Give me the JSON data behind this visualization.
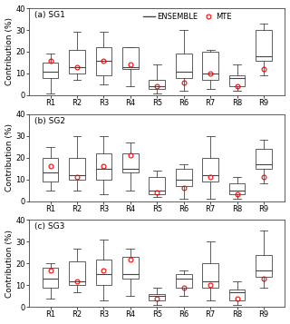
{
  "panels": [
    {
      "label": "(a) SG1",
      "boxes": [
        {
          "whislo": 1,
          "q1": 8,
          "med": 11,
          "q3": 15,
          "whishi": 19,
          "mte": 16
        },
        {
          "whislo": 7,
          "q1": 10,
          "med": 13,
          "q3": 21,
          "whishi": 29,
          "mte": 13
        },
        {
          "whislo": 5,
          "q1": 9,
          "med": 16,
          "q3": 22,
          "whishi": 29,
          "mte": 16
        },
        {
          "whislo": 4,
          "q1": 12,
          "med": 13,
          "q3": 22,
          "whishi": 22,
          "mte": 14
        },
        {
          "whislo": 1,
          "q1": 3,
          "med": 4,
          "q3": 7,
          "whishi": 14,
          "mte": 4
        },
        {
          "whislo": 2,
          "q1": 8,
          "med": 11,
          "q3": 19,
          "whishi": 30,
          "mte": 6
        },
        {
          "whislo": 3,
          "q1": 7,
          "med": 10,
          "q3": 20,
          "whishi": 21,
          "mte": 10
        },
        {
          "whislo": 2,
          "q1": 4,
          "med": 8,
          "q3": 9,
          "whishi": 14,
          "mte": 4
        },
        {
          "whislo": 9,
          "q1": 16,
          "med": 18,
          "q3": 30,
          "whishi": 33,
          "mte": 12
        }
      ]
    },
    {
      "label": "(b) SG2",
      "boxes": [
        {
          "whislo": 5,
          "q1": 9,
          "med": 13,
          "q3": 20,
          "whishi": 25,
          "mte": 16
        },
        {
          "whislo": 5,
          "q1": 10,
          "med": 12,
          "q3": 20,
          "whishi": 30,
          "mte": 11
        },
        {
          "whislo": 3,
          "q1": 10,
          "med": 15,
          "q3": 22,
          "whishi": 30,
          "mte": 16
        },
        {
          "whislo": 5,
          "q1": 13,
          "med": 15,
          "q3": 22,
          "whishi": 27,
          "mte": 21
        },
        {
          "whislo": 2,
          "q1": 3,
          "med": 5,
          "q3": 11,
          "whishi": 14,
          "mte": 4
        },
        {
          "whislo": 1,
          "q1": 7,
          "med": 10,
          "q3": 15,
          "whishi": 17,
          "mte": 6
        },
        {
          "whislo": 1,
          "q1": 9,
          "med": 12,
          "q3": 20,
          "whishi": 30,
          "mte": 11
        },
        {
          "whislo": 1,
          "q1": 3,
          "med": 5,
          "q3": 8,
          "whishi": 11,
          "mte": 3
        },
        {
          "whislo": 8,
          "q1": 15,
          "med": 17,
          "q3": 24,
          "whishi": 28,
          "mte": 11
        }
      ]
    },
    {
      "label": "(c) SG3",
      "boxes": [
        {
          "whislo": 4,
          "q1": 9,
          "med": 13,
          "q3": 18,
          "whishi": 20,
          "mte": 17
        },
        {
          "whislo": 7,
          "q1": 10,
          "med": 12,
          "q3": 21,
          "whishi": 27,
          "mte": 12
        },
        {
          "whislo": 3,
          "q1": 10,
          "med": 15,
          "q3": 22,
          "whishi": 31,
          "mte": 17
        },
        {
          "whislo": 5,
          "q1": 13,
          "med": 15,
          "q3": 23,
          "whishi": 27,
          "mte": 22
        },
        {
          "whislo": 1,
          "q1": 3,
          "med": 5,
          "q3": 6,
          "whishi": 9,
          "mte": 4
        },
        {
          "whislo": 5,
          "q1": 9,
          "med": 13,
          "q3": 15,
          "whishi": 17,
          "mte": 9
        },
        {
          "whislo": 3,
          "q1": 9,
          "med": 12,
          "q3": 20,
          "whishi": 30,
          "mte": 10
        },
        {
          "whislo": 1,
          "q1": 3,
          "med": 7,
          "q3": 8,
          "whishi": 12,
          "mte": 4
        },
        {
          "whislo": 9,
          "q1": 14,
          "med": 17,
          "q3": 24,
          "whishi": 35,
          "mte": 13
        }
      ]
    }
  ],
  "categories": [
    "R1",
    "R2",
    "R3",
    "R4",
    "R5",
    "R6",
    "R7",
    "R8",
    "R9"
  ],
  "ylabel": "Contribution (%)",
  "ylim": [
    0,
    40
  ],
  "yticks": [
    0,
    10,
    20,
    30,
    40
  ],
  "box_color": "#ffffff",
  "box_edgecolor": "#444444",
  "median_color": "#444444",
  "whisker_color": "#444444",
  "cap_color": "#444444",
  "mte_color": "red",
  "mte_marker": "o",
  "mte_size": 3.5,
  "legend_line_color": "#444444",
  "bg_color": "#ffffff",
  "fig_width": 3.2,
  "fig_height": 3.57,
  "dpi": 100,
  "fontsize": 6.5,
  "label_fontsize": 6.5,
  "tick_fontsize": 6
}
